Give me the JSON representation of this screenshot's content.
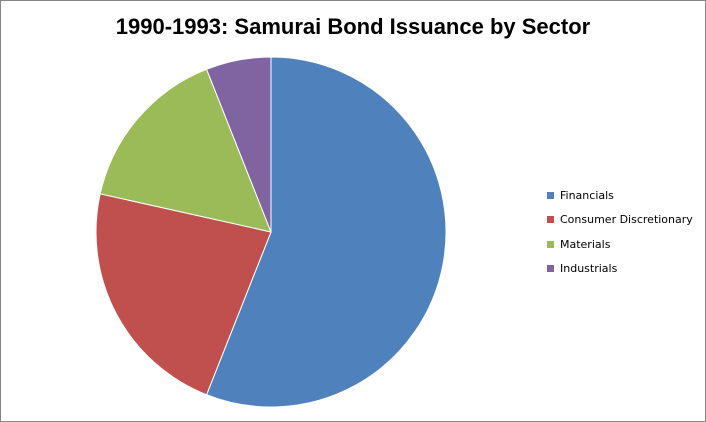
{
  "chart_data": {
    "type": "pie",
    "title": "1990-1993: Samurai Bond Issuance by Sector",
    "categories": [
      "Financials",
      "Consumer Discretionary",
      "Materials",
      "Industrials"
    ],
    "values": [
      56.0,
      22.5,
      15.5,
      6.0
    ],
    "value_unit": "percent share (estimated)",
    "colors": [
      "#4F81BD",
      "#C0504D",
      "#9BBB59",
      "#8064A2"
    ],
    "start_angle": "12 o'clock",
    "direction": "clockwise",
    "legend_placement": "right"
  }
}
